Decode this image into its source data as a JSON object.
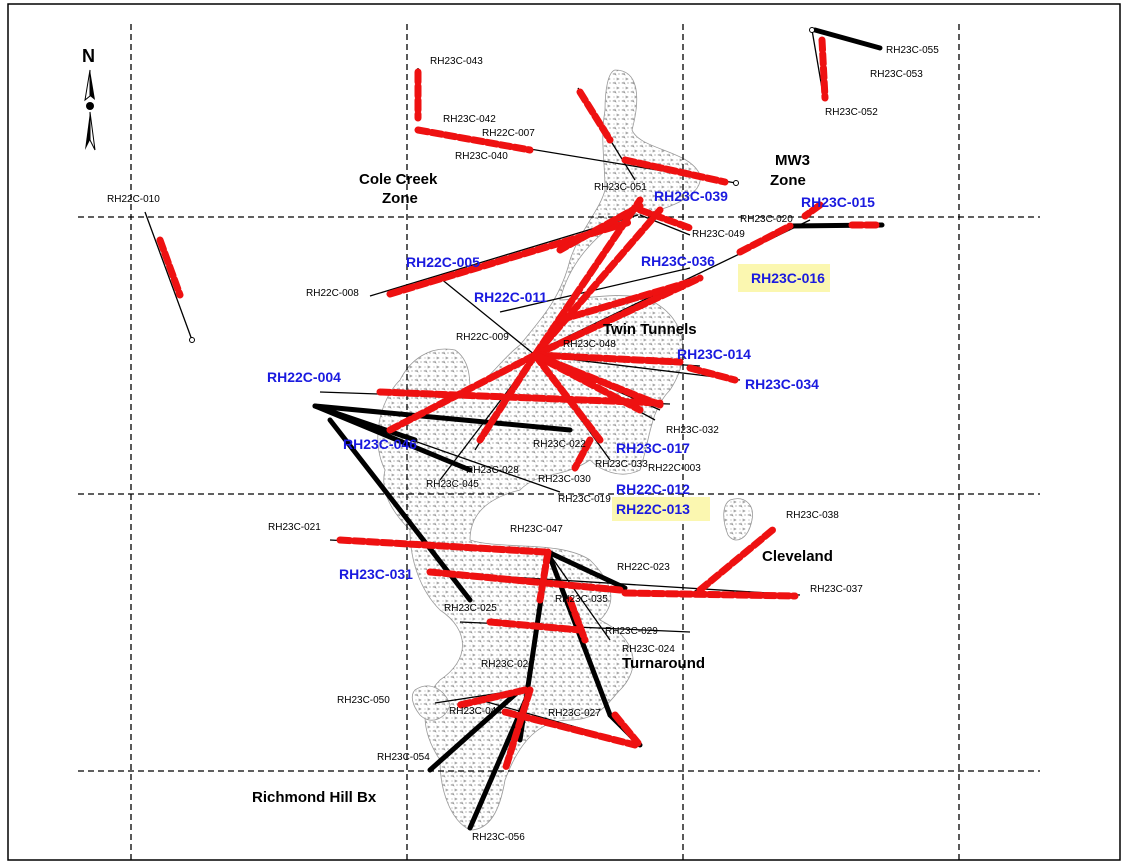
{
  "north_arrow": {
    "label": "N"
  },
  "zones": {
    "cole_creek": [
      "Cole Creek",
      "Zone"
    ],
    "mw3": [
      "MW3",
      "Zone"
    ],
    "twin_tunnels": "Twin Tunnels",
    "cleveland": "Cleveland",
    "turnaround": "Turnaround",
    "richmond_hill": "Richmond Hill Bx"
  },
  "highlighted_holes": [
    "RH23C-039",
    "RH23C-015",
    "RH22C-005",
    "RH23C-036",
    "RH23C-016",
    "RH22C-011",
    "RH23C-014",
    "RH22C-004",
    "RH23C-034",
    "RH23C-046",
    "RH23C-017",
    "RH22C-012",
    "RH22C-013",
    "RH23C-031"
  ],
  "boxed_holes": [
    "RH23C-016",
    "RH22C-013"
  ],
  "hole_labels": [
    "RH23C-043",
    "RH23C-042",
    "RH22C-007",
    "RH23C-040",
    "RH23C-051",
    "RH23C-055",
    "RH23C-053",
    "RH23C-052",
    "RH22C-010",
    "RH23C-020",
    "RH23C-049",
    "RH22C-008",
    "RH22C-009",
    "RH23C-048",
    "RH23C-032",
    "RH23C-022",
    "RH23C-033",
    "RH22C-003",
    "RH23C-028",
    "RH23C-030",
    "RH23C-045",
    "RH23C-019",
    "RH23C-038",
    "RH23C-021",
    "RH23C-047",
    "RH22C-023",
    "RH23C-037",
    "RH23C-035",
    "RH23C-025",
    "RH23C-029",
    "RH23C-024",
    "RH23C-026",
    "RH23C-050",
    "RH23C-044",
    "RH23C-027",
    "RH23C-054",
    "RH23C-056"
  ],
  "colors": {
    "mineralized_interval": "#ee1111",
    "highlight_label": "#1a1adf",
    "label_box": "#fbf7b0",
    "drill_trace": "#000000"
  }
}
